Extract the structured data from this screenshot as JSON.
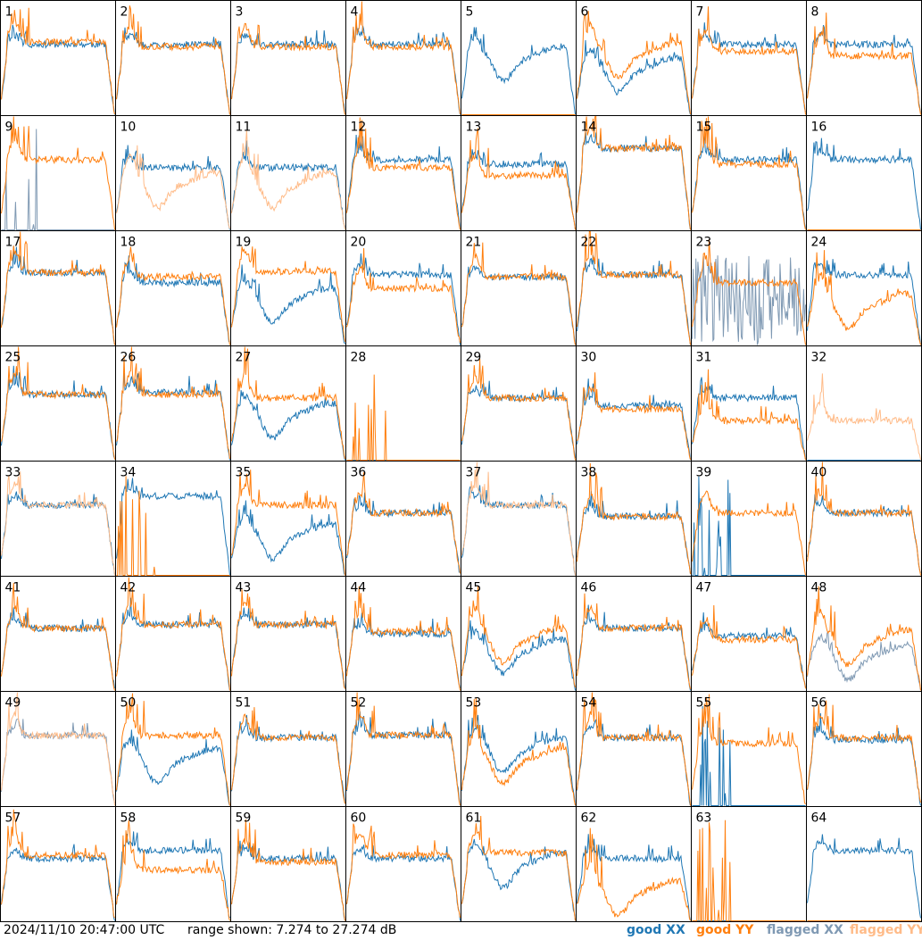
{
  "footer": {
    "timestamp": "2024/11/10 20:47:00 UTC",
    "range_text": "range shown: 7.274 to 27.274 dB"
  },
  "legend": [
    {
      "label": "good XX",
      "color": "#1f77b4"
    },
    {
      "label": "good YY",
      "color": "#ff7f0e"
    },
    {
      "label": "flagged XX",
      "color": "#7f99b3"
    },
    {
      "label": "flagged YY",
      "color": "#ffbb88"
    }
  ],
  "chart_data": {
    "type": "line",
    "grid": {
      "rows": 8,
      "cols": 8
    },
    "ylim_db": [
      7.274,
      27.274
    ],
    "series_names": [
      "good XX",
      "good YY",
      "flagged XX",
      "flagged YY"
    ],
    "panels": [
      {
        "label": "1",
        "xx": "good",
        "yy": "good",
        "xx_shape": "normal",
        "yy_shape": "normal",
        "xx_level": 0.62,
        "yy_level": 0.64
      },
      {
        "label": "2",
        "xx": "good",
        "yy": "good",
        "xx_shape": "normal",
        "yy_shape": "normal",
        "xx_level": 0.62,
        "yy_level": 0.6
      },
      {
        "label": "3",
        "xx": "good",
        "yy": "good",
        "xx_shape": "normal",
        "yy_shape": "normal",
        "xx_level": 0.62,
        "yy_level": 0.6
      },
      {
        "label": "4",
        "xx": "good",
        "yy": "good",
        "xx_shape": "normal",
        "yy_shape": "normal",
        "xx_level": 0.62,
        "yy_level": 0.6
      },
      {
        "label": "5",
        "xx": "good",
        "yy": "good",
        "xx_shape": "dip",
        "yy_shape": "none",
        "xx_level": 0.55,
        "yy_level": 0.0
      },
      {
        "label": "6",
        "xx": "good",
        "yy": "good",
        "xx_shape": "dip",
        "yy_shape": "dip",
        "xx_level": 0.45,
        "yy_level": 0.58
      },
      {
        "label": "7",
        "xx": "good",
        "yy": "good",
        "xx_shape": "normal",
        "yy_shape": "normal",
        "xx_level": 0.62,
        "yy_level": 0.56
      },
      {
        "label": "8",
        "xx": "good",
        "yy": "good",
        "xx_shape": "normal",
        "yy_shape": "normal",
        "xx_level": 0.62,
        "yy_level": 0.52
      },
      {
        "label": "9",
        "xx": "flagged",
        "yy": "good",
        "xx_shape": "spikes",
        "yy_shape": "normal",
        "xx_level": 0.1,
        "yy_level": 0.62
      },
      {
        "label": "10",
        "xx": "good",
        "yy": "flagged",
        "xx_shape": "normal",
        "yy_shape": "dip",
        "xx_level": 0.55,
        "yy_level": 0.45
      },
      {
        "label": "11",
        "xx": "good",
        "yy": "flagged",
        "xx_shape": "normal",
        "yy_shape": "dip",
        "xx_level": 0.55,
        "yy_level": 0.45
      },
      {
        "label": "12",
        "xx": "good",
        "yy": "good",
        "xx_shape": "normal",
        "yy_shape": "normal",
        "xx_level": 0.62,
        "yy_level": 0.55
      },
      {
        "label": "13",
        "xx": "good",
        "yy": "good",
        "xx_shape": "normal",
        "yy_shape": "normal",
        "xx_level": 0.58,
        "yy_level": 0.48
      },
      {
        "label": "14",
        "xx": "good",
        "yy": "good",
        "xx_shape": "normal",
        "yy_shape": "normal",
        "xx_level": 0.72,
        "yy_level": 0.72
      },
      {
        "label": "15",
        "xx": "good",
        "yy": "good",
        "xx_shape": "normal",
        "yy_shape": "normal",
        "xx_level": 0.62,
        "yy_level": 0.58
      },
      {
        "label": "16",
        "xx": "good",
        "yy": "good",
        "xx_shape": "normal",
        "yy_shape": "none",
        "xx_level": 0.62,
        "yy_level": 0.0
      },
      {
        "label": "17",
        "xx": "good",
        "yy": "good",
        "xx_shape": "normal",
        "yy_shape": "normal",
        "xx_level": 0.64,
        "yy_level": 0.64
      },
      {
        "label": "18",
        "xx": "good",
        "yy": "good",
        "xx_shape": "normal",
        "yy_shape": "normal",
        "xx_level": 0.55,
        "yy_level": 0.6
      },
      {
        "label": "19",
        "xx": "good",
        "yy": "good",
        "xx_shape": "dip",
        "yy_shape": "normal",
        "xx_level": 0.45,
        "yy_level": 0.65
      },
      {
        "label": "20",
        "xx": "good",
        "yy": "good",
        "xx_shape": "normal",
        "yy_shape": "normal",
        "xx_level": 0.62,
        "yy_level": 0.5
      },
      {
        "label": "21",
        "xx": "good",
        "yy": "good",
        "xx_shape": "normal",
        "yy_shape": "normal",
        "xx_level": 0.6,
        "yy_level": 0.6
      },
      {
        "label": "22",
        "xx": "good",
        "yy": "good",
        "xx_shape": "normal",
        "yy_shape": "normal",
        "xx_level": 0.62,
        "yy_level": 0.62
      },
      {
        "label": "23",
        "xx": "flagged",
        "yy": "good",
        "xx_shape": "noisy",
        "yy_shape": "normal",
        "xx_level": 0.4,
        "yy_level": 0.55
      },
      {
        "label": "24",
        "xx": "good",
        "yy": "good",
        "xx_shape": "normal",
        "yy_shape": "dip",
        "xx_level": 0.62,
        "yy_level": 0.4
      },
      {
        "label": "25",
        "xx": "good",
        "yy": "good",
        "xx_shape": "normal",
        "yy_shape": "normal",
        "xx_level": 0.58,
        "yy_level": 0.58
      },
      {
        "label": "26",
        "xx": "good",
        "yy": "good",
        "xx_shape": "normal",
        "yy_shape": "normal",
        "xx_level": 0.6,
        "yy_level": 0.58
      },
      {
        "label": "27",
        "xx": "good",
        "yy": "good",
        "xx_shape": "dip",
        "yy_shape": "normal",
        "xx_level": 0.45,
        "yy_level": 0.55
      },
      {
        "label": "28",
        "xx": "good",
        "yy": "good",
        "xx_shape": "none",
        "yy_shape": "spikes",
        "xx_level": 0.0,
        "yy_level": 0.0
      },
      {
        "label": "29",
        "xx": "good",
        "yy": "good",
        "xx_shape": "normal",
        "yy_shape": "normal",
        "xx_level": 0.55,
        "yy_level": 0.55
      },
      {
        "label": "30",
        "xx": "good",
        "yy": "good",
        "xx_shape": "normal",
        "yy_shape": "normal",
        "xx_level": 0.48,
        "yy_level": 0.45
      },
      {
        "label": "31",
        "xx": "good",
        "yy": "good",
        "xx_shape": "normal",
        "yy_shape": "normal",
        "xx_level": 0.55,
        "yy_level": 0.35
      },
      {
        "label": "32",
        "xx": "good",
        "yy": "flagged",
        "xx_shape": "none",
        "yy_shape": "normal",
        "xx_level": 0.0,
        "yy_level": 0.35
      },
      {
        "label": "33",
        "xx": "good",
        "yy": "flagged",
        "xx_shape": "normal",
        "yy_shape": "normal",
        "xx_level": 0.62,
        "yy_level": 0.62
      },
      {
        "label": "34",
        "xx": "good",
        "yy": "good",
        "xx_shape": "normal",
        "yy_shape": "spikes",
        "xx_level": 0.7,
        "yy_level": 0.0
      },
      {
        "label": "35",
        "xx": "good",
        "yy": "good",
        "xx_shape": "dip",
        "yy_shape": "normal",
        "xx_level": 0.4,
        "yy_level": 0.62
      },
      {
        "label": "36",
        "xx": "good",
        "yy": "good",
        "xx_shape": "normal",
        "yy_shape": "normal",
        "xx_level": 0.55,
        "yy_level": 0.55
      },
      {
        "label": "37",
        "xx": "good",
        "yy": "flagged",
        "xx_shape": "normal",
        "yy_shape": "normal",
        "xx_level": 0.62,
        "yy_level": 0.62
      },
      {
        "label": "38",
        "xx": "good",
        "yy": "good",
        "xx_shape": "normal",
        "yy_shape": "normal",
        "xx_level": 0.52,
        "yy_level": 0.52
      },
      {
        "label": "39",
        "xx": "good",
        "yy": "good",
        "xx_shape": "spikes",
        "yy_shape": "normal",
        "xx_level": 0.1,
        "yy_level": 0.55
      },
      {
        "label": "40",
        "xx": "good",
        "yy": "good",
        "xx_shape": "normal",
        "yy_shape": "normal",
        "xx_level": 0.55,
        "yy_level": 0.55
      },
      {
        "label": "41",
        "xx": "good",
        "yy": "good",
        "xx_shape": "normal",
        "yy_shape": "normal",
        "xx_level": 0.55,
        "yy_level": 0.55
      },
      {
        "label": "42",
        "xx": "good",
        "yy": "good",
        "xx_shape": "normal",
        "yy_shape": "normal",
        "xx_level": 0.58,
        "yy_level": 0.58
      },
      {
        "label": "43",
        "xx": "good",
        "yy": "good",
        "xx_shape": "normal",
        "yy_shape": "normal",
        "xx_level": 0.58,
        "yy_level": 0.58
      },
      {
        "label": "44",
        "xx": "good",
        "yy": "good",
        "xx_shape": "normal",
        "yy_shape": "normal",
        "xx_level": 0.5,
        "yy_level": 0.52
      },
      {
        "label": "45",
        "xx": "good",
        "yy": "good",
        "xx_shape": "dip",
        "yy_shape": "dip",
        "xx_level": 0.4,
        "yy_level": 0.5
      },
      {
        "label": "46",
        "xx": "good",
        "yy": "good",
        "xx_shape": "normal",
        "yy_shape": "normal",
        "xx_level": 0.55,
        "yy_level": 0.55
      },
      {
        "label": "47",
        "xx": "good",
        "yy": "good",
        "xx_shape": "normal",
        "yy_shape": "normal",
        "xx_level": 0.48,
        "yy_level": 0.45
      },
      {
        "label": "48",
        "xx": "flagged",
        "yy": "good",
        "xx_shape": "dip",
        "yy_shape": "dip",
        "xx_level": 0.35,
        "yy_level": 0.48
      },
      {
        "label": "49",
        "xx": "flagged",
        "yy": "flagged",
        "xx_shape": "normal",
        "yy_shape": "normal",
        "xx_level": 0.62,
        "yy_level": 0.62
      },
      {
        "label": "50",
        "xx": "good",
        "yy": "good",
        "xx_shape": "dip",
        "yy_shape": "normal",
        "xx_level": 0.45,
        "yy_level": 0.62
      },
      {
        "label": "51",
        "xx": "good",
        "yy": "good",
        "xx_shape": "normal",
        "yy_shape": "normal",
        "xx_level": 0.6,
        "yy_level": 0.6
      },
      {
        "label": "52",
        "xx": "good",
        "yy": "good",
        "xx_shape": "normal",
        "yy_shape": "normal",
        "xx_level": 0.62,
        "yy_level": 0.62
      },
      {
        "label": "53",
        "xx": "good",
        "yy": "good",
        "xx_shape": "dip",
        "yy_shape": "dip",
        "xx_level": 0.55,
        "yy_level": 0.45
      },
      {
        "label": "54",
        "xx": "good",
        "yy": "good",
        "xx_shape": "normal",
        "yy_shape": "normal",
        "xx_level": 0.6,
        "yy_level": 0.6
      },
      {
        "label": "55",
        "xx": "good",
        "yy": "good",
        "xx_shape": "spikes",
        "yy_shape": "normal",
        "xx_level": 0.1,
        "yy_level": 0.55
      },
      {
        "label": "56",
        "xx": "good",
        "yy": "good",
        "xx_shape": "normal",
        "yy_shape": "normal",
        "xx_level": 0.58,
        "yy_level": 0.6
      },
      {
        "label": "57",
        "xx": "good",
        "yy": "good",
        "xx_shape": "normal",
        "yy_shape": "normal",
        "xx_level": 0.55,
        "yy_level": 0.58
      },
      {
        "label": "58",
        "xx": "good",
        "yy": "good",
        "xx_shape": "normal",
        "yy_shape": "normal",
        "xx_level": 0.62,
        "yy_level": 0.45
      },
      {
        "label": "59",
        "xx": "good",
        "yy": "good",
        "xx_shape": "normal",
        "yy_shape": "normal",
        "xx_level": 0.55,
        "yy_level": 0.52
      },
      {
        "label": "60",
        "xx": "good",
        "yy": "good",
        "xx_shape": "normal",
        "yy_shape": "normal",
        "xx_level": 0.55,
        "yy_level": 0.58
      },
      {
        "label": "61",
        "xx": "good",
        "yy": "good",
        "xx_shape": "dip",
        "yy_shape": "normal",
        "xx_level": 0.55,
        "yy_level": 0.6
      },
      {
        "label": "62",
        "xx": "good",
        "yy": "good",
        "xx_shape": "normal",
        "yy_shape": "dip",
        "xx_level": 0.55,
        "yy_level": 0.3
      },
      {
        "label": "63",
        "xx": "good",
        "yy": "good",
        "xx_shape": "none",
        "yy_shape": "spikes",
        "xx_level": 0.0,
        "yy_level": 0.0
      },
      {
        "label": "64",
        "xx": "good",
        "yy": "good",
        "xx_shape": "normal",
        "yy_shape": "none",
        "xx_level": 0.62,
        "yy_level": 0.0
      }
    ]
  }
}
